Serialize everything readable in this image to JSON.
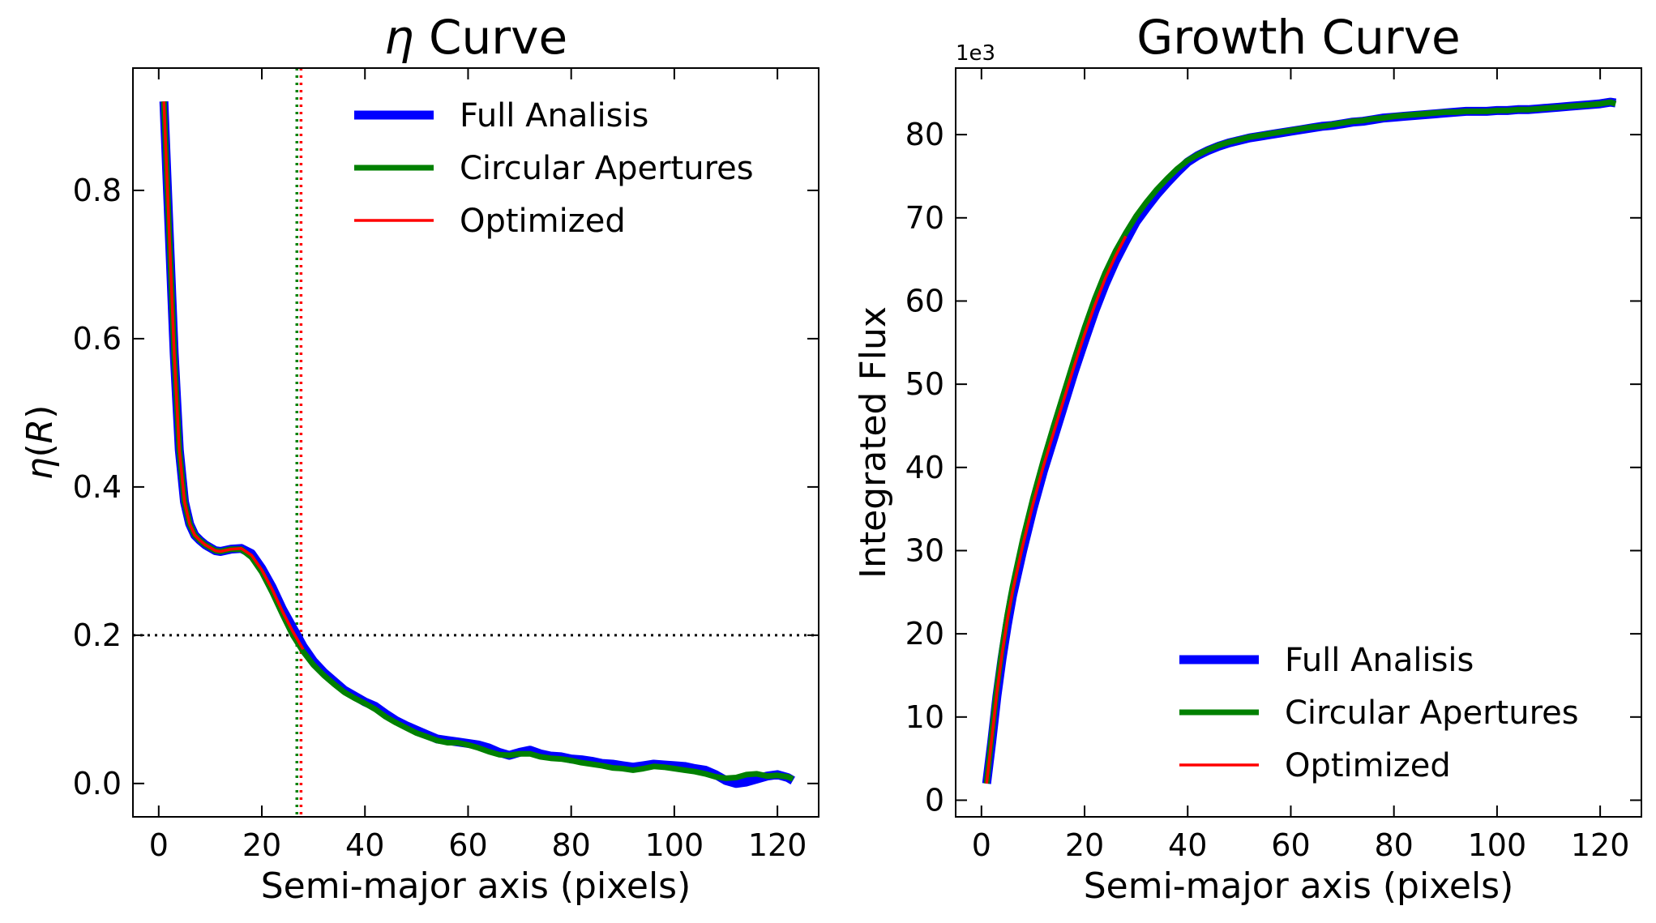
{
  "colors": {
    "full": "#0000ff",
    "circular": "#008000",
    "optimized": "#ff0000",
    "ref": "#000000"
  },
  "chart_data": [
    {
      "type": "line",
      "title_sym": "η",
      "title": " Curve",
      "xlabel": "Semi-major axis (pixels)",
      "ylabel_sym": "η",
      "ylabel": "(R)",
      "xlim": [
        -5,
        128
      ],
      "ylim": [
        -0.045,
        0.965
      ],
      "xticks": [
        0,
        20,
        40,
        60,
        80,
        100,
        120
      ],
      "yticks": [
        0.0,
        0.2,
        0.4,
        0.6,
        0.8
      ],
      "xticklabels": [
        "0",
        "20",
        "40",
        "60",
        "80",
        "100",
        "120"
      ],
      "yticklabels": [
        "0.0",
        "0.2",
        "0.4",
        "0.6",
        "0.8"
      ],
      "legend_position": "top-right",
      "legend": [
        "Full Analisis",
        "Circular Apertures",
        "Optimized"
      ],
      "hline": 0.2,
      "vlines": [
        {
          "x": 26.8,
          "series": "circular"
        },
        {
          "x": 27.6,
          "series": "optimized"
        }
      ],
      "series": [
        {
          "name": "Full Analisis",
          "key": "full",
          "x": [
            1,
            2,
            3,
            4,
            5,
            6,
            7,
            8,
            9,
            10,
            11,
            12,
            14,
            16,
            18,
            20,
            22,
            24,
            26,
            28,
            30,
            32,
            34,
            36,
            38,
            40,
            42,
            44,
            46,
            48,
            50,
            52,
            54,
            56,
            58,
            60,
            62,
            64,
            66,
            68,
            70,
            72,
            74,
            76,
            78,
            80,
            82,
            84,
            86,
            88,
            90,
            92,
            94,
            96,
            98,
            100,
            102,
            104,
            106,
            108,
            110,
            112,
            114,
            116,
            118,
            120,
            122,
            123
          ],
          "y": [
            0.92,
            0.75,
            0.58,
            0.45,
            0.38,
            0.35,
            0.335,
            0.328,
            0.322,
            0.318,
            0.314,
            0.313,
            0.316,
            0.317,
            0.31,
            0.29,
            0.265,
            0.235,
            0.21,
            0.185,
            0.165,
            0.15,
            0.138,
            0.126,
            0.118,
            0.11,
            0.104,
            0.094,
            0.085,
            0.078,
            0.072,
            0.066,
            0.06,
            0.058,
            0.056,
            0.054,
            0.052,
            0.048,
            0.042,
            0.038,
            0.042,
            0.045,
            0.04,
            0.037,
            0.036,
            0.033,
            0.032,
            0.03,
            0.027,
            0.026,
            0.024,
            0.022,
            0.024,
            0.026,
            0.025,
            0.024,
            0.023,
            0.02,
            0.018,
            0.012,
            0.004,
            0.0,
            0.002,
            0.006,
            0.01,
            0.012,
            0.008,
            0.004
          ]
        },
        {
          "name": "Circular Apertures",
          "key": "circular",
          "x": [
            1,
            2,
            3,
            4,
            5,
            6,
            7,
            8,
            9,
            10,
            11,
            12,
            14,
            16,
            18,
            20,
            22,
            24,
            26,
            28,
            30,
            32,
            34,
            36,
            38,
            40,
            42,
            44,
            46,
            48,
            50,
            52,
            54,
            56,
            58,
            60,
            62,
            64,
            66,
            68,
            70,
            72,
            74,
            76,
            78,
            80,
            82,
            84,
            86,
            88,
            90,
            92,
            94,
            96,
            98,
            100,
            102,
            104,
            106,
            108,
            110,
            112,
            114,
            116,
            118,
            120,
            122,
            123
          ],
          "y": [
            0.92,
            0.75,
            0.58,
            0.45,
            0.38,
            0.35,
            0.335,
            0.328,
            0.322,
            0.318,
            0.314,
            0.313,
            0.316,
            0.316,
            0.305,
            0.285,
            0.258,
            0.228,
            0.2,
            0.178,
            0.16,
            0.146,
            0.134,
            0.123,
            0.115,
            0.108,
            0.1,
            0.09,
            0.082,
            0.075,
            0.068,
            0.063,
            0.058,
            0.055,
            0.055,
            0.052,
            0.048,
            0.043,
            0.039,
            0.038,
            0.04,
            0.04,
            0.036,
            0.034,
            0.033,
            0.031,
            0.028,
            0.026,
            0.024,
            0.021,
            0.02,
            0.018,
            0.02,
            0.023,
            0.022,
            0.02,
            0.018,
            0.016,
            0.013,
            0.009,
            0.007,
            0.008,
            0.012,
            0.013,
            0.01,
            0.011,
            0.009,
            0.006
          ]
        },
        {
          "name": "Optimized",
          "key": "optimized",
          "x": [
            1,
            2,
            3,
            4,
            5,
            6,
            7,
            8,
            9,
            10,
            11,
            12,
            14,
            16,
            18,
            20,
            22,
            24,
            26,
            28
          ],
          "y": [
            0.92,
            0.75,
            0.58,
            0.45,
            0.38,
            0.35,
            0.335,
            0.328,
            0.322,
            0.318,
            0.314,
            0.313,
            0.316,
            0.317,
            0.308,
            0.288,
            0.262,
            0.232,
            0.205,
            0.181
          ]
        }
      ]
    },
    {
      "type": "line",
      "title": "Growth Curve",
      "xlabel": "Semi-major axis (pixels)",
      "ylabel": "Integrated Flux",
      "y_offset_label": "1e3",
      "xlim": [
        -5,
        128
      ],
      "ylim": [
        -2,
        88
      ],
      "xticks": [
        0,
        20,
        40,
        60,
        80,
        100,
        120
      ],
      "yticks": [
        0,
        10,
        20,
        30,
        40,
        50,
        60,
        70,
        80
      ],
      "xticklabels": [
        "0",
        "20",
        "40",
        "60",
        "80",
        "100",
        "120"
      ],
      "yticklabels": [
        "0",
        "10",
        "20",
        "30",
        "40",
        "50",
        "60",
        "70",
        "80"
      ],
      "legend_position": "bottom-right",
      "legend": [
        "Full Analisis",
        "Circular Apertures",
        "Optimized"
      ],
      "series": [
        {
          "name": "Full Analisis",
          "key": "full",
          "x": [
            1,
            2,
            3,
            4,
            5,
            6,
            8,
            10,
            12,
            14,
            16,
            18,
            20,
            22,
            24,
            26,
            28,
            30,
            32,
            34,
            36,
            38,
            40,
            42,
            44,
            46,
            48,
            50,
            52,
            54,
            56,
            58,
            60,
            62,
            64,
            66,
            68,
            70,
            72,
            74,
            76,
            78,
            80,
            82,
            84,
            86,
            88,
            90,
            92,
            94,
            96,
            98,
            100,
            102,
            104,
            106,
            108,
            110,
            112,
            114,
            116,
            118,
            120,
            122,
            123
          ],
          "y": [
            2,
            7,
            12.5,
            17,
            21,
            24.5,
            30,
            35,
            39.5,
            43.5,
            47.5,
            51.5,
            55.2,
            58.8,
            62,
            64.8,
            67.2,
            69.5,
            71.2,
            72.8,
            74.2,
            75.5,
            76.7,
            77.5,
            78.1,
            78.6,
            79,
            79.3,
            79.6,
            79.8,
            80,
            80.2,
            80.4,
            80.6,
            80.8,
            81,
            81.1,
            81.3,
            81.5,
            81.6,
            81.8,
            82,
            82.1,
            82.2,
            82.3,
            82.4,
            82.5,
            82.6,
            82.7,
            82.8,
            82.8,
            82.8,
            82.9,
            82.9,
            83,
            83,
            83.1,
            83.2,
            83.3,
            83.4,
            83.5,
            83.6,
            83.7,
            83.9,
            83.8
          ]
        },
        {
          "name": "Circular Apertures",
          "key": "circular",
          "x": [
            1,
            2,
            3,
            4,
            5,
            6,
            8,
            10,
            12,
            14,
            16,
            18,
            20,
            22,
            24,
            26,
            28,
            30,
            32,
            34,
            36,
            38,
            40,
            42,
            44,
            46,
            48,
            50,
            52,
            54,
            56,
            58,
            60,
            62,
            64,
            66,
            68,
            70,
            72,
            74,
            76,
            78,
            80,
            82,
            84,
            86,
            88,
            90,
            92,
            94,
            96,
            98,
            100,
            102,
            104,
            106,
            108,
            110,
            112,
            114,
            116,
            118,
            120,
            122,
            123
          ],
          "y": [
            2,
            7.8,
            13.5,
            18.2,
            22.2,
            25.6,
            31.3,
            36.3,
            40.8,
            45,
            49,
            53,
            56.8,
            60.3,
            63.4,
            66,
            68.2,
            70.2,
            71.9,
            73.4,
            74.7,
            75.9,
            76.9,
            77.6,
            78.2,
            78.7,
            79.1,
            79.4,
            79.7,
            79.9,
            80.1,
            80.3,
            80.5,
            80.7,
            80.9,
            81,
            81.2,
            81.4,
            81.6,
            81.7,
            81.9,
            82,
            82.2,
            82.3,
            82.4,
            82.5,
            82.6,
            82.7,
            82.7,
            82.8,
            82.8,
            82.8,
            82.9,
            82.9,
            83,
            83,
            83.1,
            83.2,
            83.3,
            83.4,
            83.5,
            83.6,
            83.7,
            83.9,
            83.7
          ]
        },
        {
          "name": "Optimized",
          "key": "optimized",
          "x": [
            1,
            2,
            3,
            4,
            5,
            6,
            8,
            10,
            12,
            14,
            16,
            18,
            20,
            22,
            24,
            26,
            28
          ],
          "y": [
            2,
            7.4,
            13,
            17.6,
            21.6,
            25,
            30.6,
            35.6,
            40.1,
            44.2,
            48.2,
            52.2,
            56,
            59.5,
            62.7,
            65.4,
            67.8
          ]
        }
      ]
    }
  ]
}
